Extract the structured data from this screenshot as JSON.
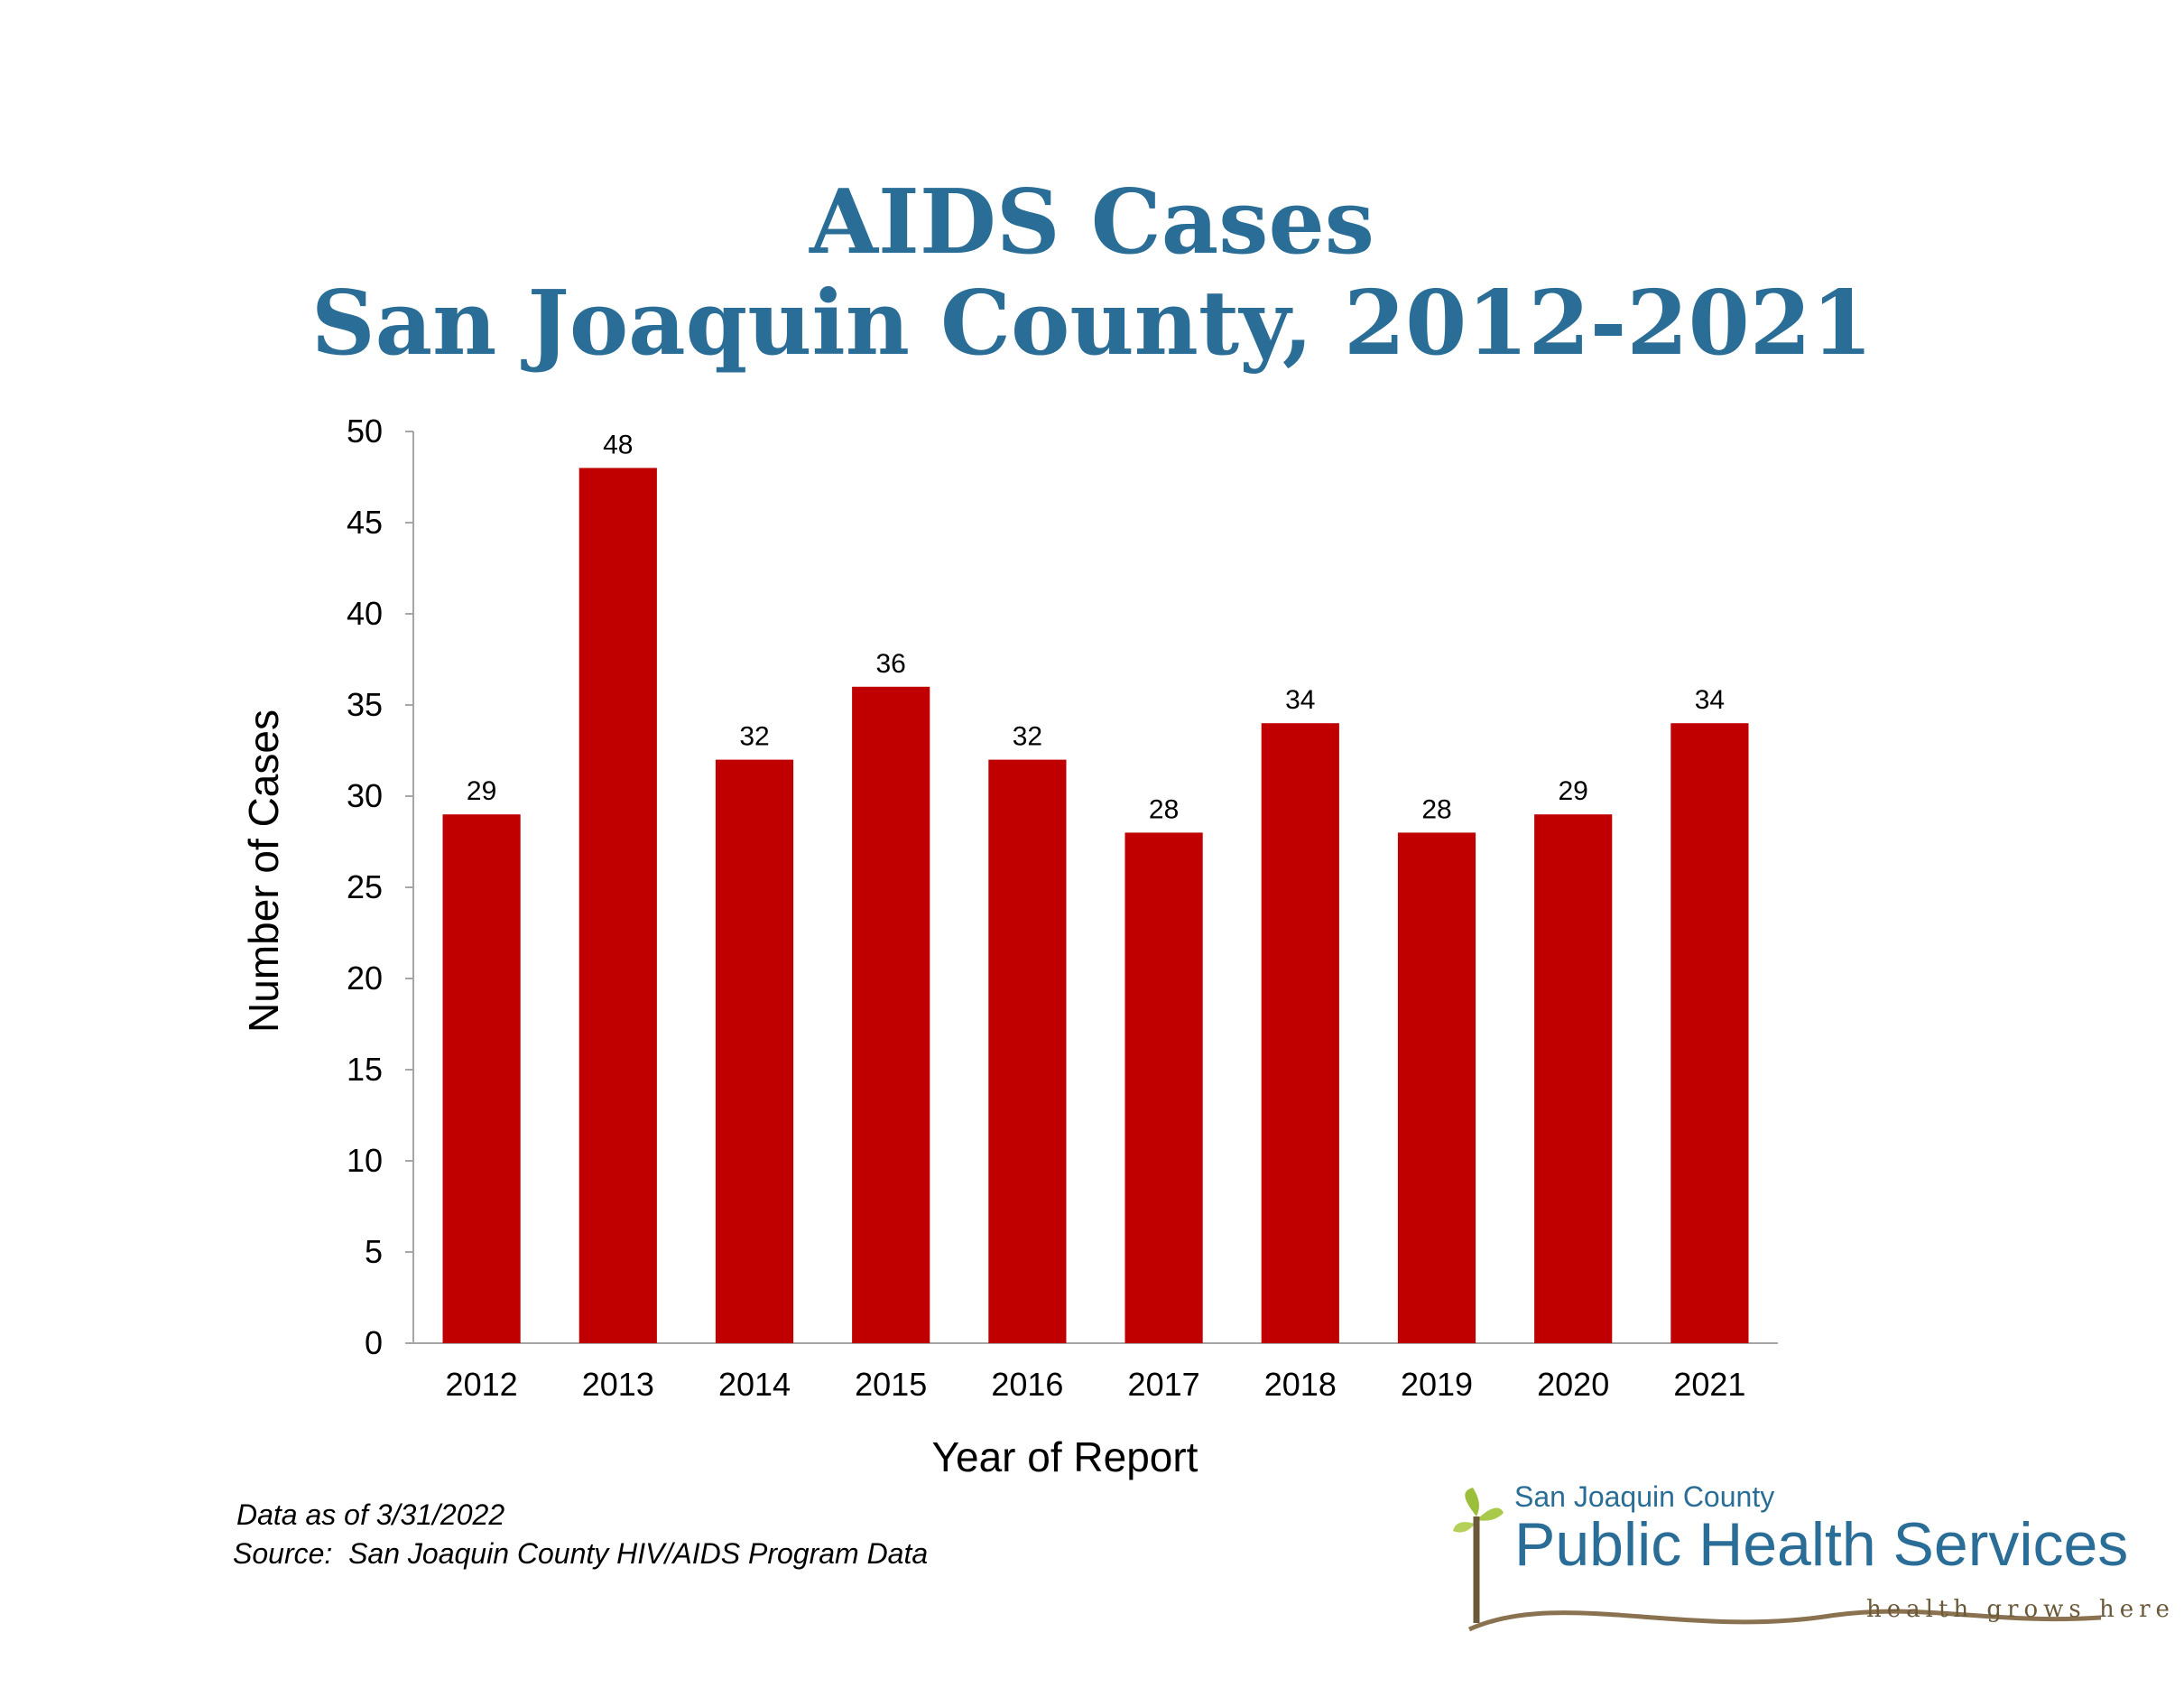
{
  "title": {
    "line1": "AIDS Cases",
    "line2": "San Joaquin County, 2012-2021"
  },
  "chart_data": {
    "type": "bar",
    "title": "AIDS Cases San Joaquin County, 2012-2021",
    "xlabel": "Year of Report",
    "ylabel": "Number of Cases",
    "categories": [
      "2012",
      "2013",
      "2014",
      "2015",
      "2016",
      "2017",
      "2018",
      "2019",
      "2020",
      "2021"
    ],
    "values": [
      29,
      48,
      32,
      36,
      32,
      28,
      34,
      28,
      29,
      34
    ],
    "ylim": [
      0,
      50
    ],
    "yticks": [
      0,
      5,
      10,
      15,
      20,
      25,
      30,
      35,
      40,
      45,
      50
    ],
    "data_labels": true,
    "grid": false,
    "bar_color": "#c00000"
  },
  "notes": {
    "date": "Data as of 3/31/2022",
    "source": "Source:  San Joaquin County HIV/AIDS Program Data"
  },
  "logo": {
    "line1": "San Joaquin County",
    "line2": "Public Health Services",
    "tagline": "health grows here",
    "color": "#2a6d96"
  }
}
